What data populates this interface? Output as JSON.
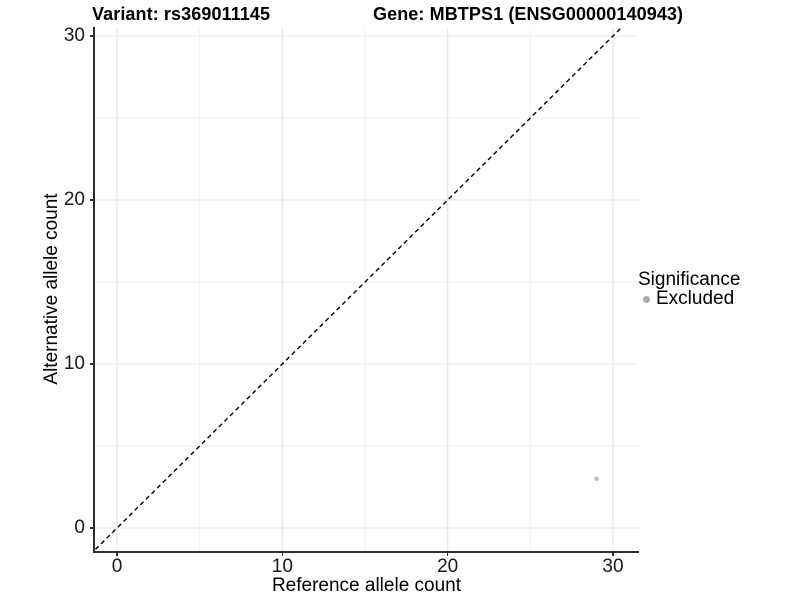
{
  "chart_data": {
    "type": "scatter",
    "titles": {
      "left": "Variant: rs369011145",
      "right": "Gene: MBTPS1 (ENSG00000140943)"
    },
    "xlabel": "Reference allele count",
    "ylabel": "Alternative allele count",
    "x_ticks": [
      0,
      10,
      20,
      30
    ],
    "y_ticks": [
      0,
      10,
      20,
      30
    ],
    "x_minor_ticks": [
      5,
      15,
      25
    ],
    "y_minor_ticks": [
      5,
      15,
      25
    ],
    "xlim": [
      -1.5,
      31.5
    ],
    "ylim": [
      -1.5,
      31.5
    ],
    "grid": true,
    "legend_position": "right",
    "identity_line": {
      "style": "dashed",
      "color": "#000000",
      "equation": "y = x"
    },
    "series": [
      {
        "name": "Excluded",
        "marker": "circle",
        "color": "#bdbdbd",
        "points": [
          {
            "x": 29,
            "y": 3
          }
        ]
      }
    ],
    "legend": {
      "title": "Significance",
      "entries": [
        {
          "label": "Excluded",
          "color": "#ababab",
          "marker": "circle"
        }
      ]
    },
    "colors": {
      "axis": "#2e2e2e",
      "grid_major": "#e4e4e4",
      "grid_minor": "#f2f2f2",
      "tick_text": "#1a1a1a",
      "background": "#ffffff"
    }
  }
}
